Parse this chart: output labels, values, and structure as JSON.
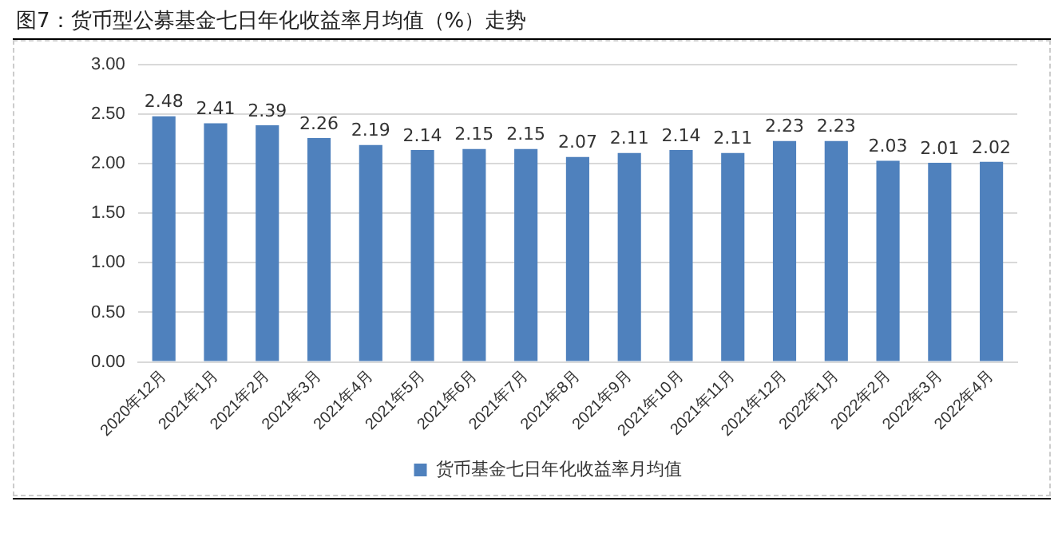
{
  "chart_data": {
    "type": "bar",
    "title": "图7：货币型公募基金七日年化收益率月均值（%）走势",
    "categories": [
      "2020年12月",
      "2021年1月",
      "2021年2月",
      "2021年3月",
      "2021年4月",
      "2021年5月",
      "2021年6月",
      "2021年7月",
      "2021年8月",
      "2021年9月",
      "2021年10月",
      "2021年11月",
      "2021年12月",
      "2022年1月",
      "2022年2月",
      "2022年3月",
      "2022年4月"
    ],
    "series": [
      {
        "name": "货币基金七日年化收益率月均值",
        "color": "#4f81bd",
        "values": [
          2.48,
          2.41,
          2.39,
          2.26,
          2.19,
          2.14,
          2.15,
          2.15,
          2.07,
          2.11,
          2.14,
          2.11,
          2.23,
          2.23,
          2.03,
          2.01,
          2.02
        ]
      }
    ],
    "ylim": [
      0,
      3
    ],
    "yticks": [
      {
        "value": 0,
        "label": "0.00"
      },
      {
        "value": 0.5,
        "label": "0.50"
      },
      {
        "value": 1,
        "label": "1.00"
      },
      {
        "value": 1.5,
        "label": "1.50"
      },
      {
        "value": 2,
        "label": "2.00"
      },
      {
        "value": 2.5,
        "label": "2.50"
      },
      {
        "value": 3,
        "label": "3.00"
      }
    ],
    "grid": "y",
    "legend": "bottom",
    "data_labels": true
  }
}
